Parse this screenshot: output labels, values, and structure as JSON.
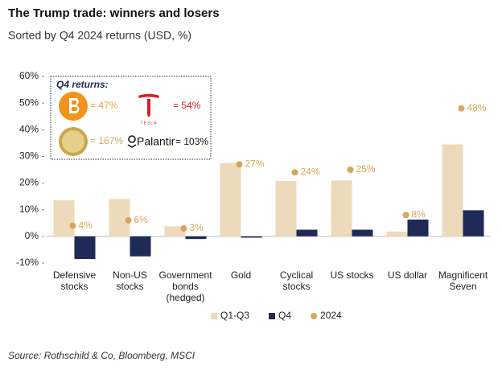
{
  "chart_data": {
    "type": "bar",
    "title": "The Trump trade: winners and losers",
    "subtitle": "Sorted by Q4 2024 returns (USD, %)",
    "source": "Source: Rothschild & Co, Bloomberg, MSCI",
    "categories": [
      "Defensive\nstocks",
      "Non-US\nstocks",
      "Government\nbonds\n(hedged)",
      "Gold",
      "Cyclical\nstocks",
      "US stocks",
      "US dollar",
      "Magnificent\nSeven"
    ],
    "series": [
      {
        "name": "Q1-Q3",
        "color": "#ecdabb",
        "values": [
          13.5,
          14,
          3.8,
          27.5,
          20.8,
          21,
          1.8,
          34.5
        ]
      },
      {
        "name": "Q4",
        "color": "#1f2a56",
        "values": [
          -8.5,
          -7.5,
          -1,
          -0.5,
          2.5,
          2.5,
          6.3,
          9.8
        ]
      },
      {
        "name": "2024",
        "color": "#d9a55a",
        "marker": "dot",
        "values": [
          4,
          6,
          3,
          27,
          24,
          25,
          8,
          48
        ],
        "value_labels": [
          "4%",
          "6%",
          "3%",
          "27%",
          "24%",
          "25%",
          "8%",
          "48%"
        ]
      }
    ],
    "ylim": [
      -10,
      60
    ],
    "yticks": [
      {
        "value": -10,
        "label": "-10%"
      },
      {
        "value": 0,
        "label": "0%"
      },
      {
        "value": 10,
        "label": "10%"
      },
      {
        "value": 20,
        "label": "20%"
      },
      {
        "value": 30,
        "label": "30%"
      },
      {
        "value": 40,
        "label": "40%"
      },
      {
        "value": 50,
        "label": "50%"
      },
      {
        "value": 60,
        "label": "60%"
      }
    ],
    "inset": {
      "title": "Q4 returns:",
      "items": [
        {
          "text": "= 47%"
        },
        {
          "brand": "TESLA",
          "text": "= 54%"
        },
        {
          "text": "= 167%"
        },
        {
          "brand": "Palantir",
          "text": "= 103%"
        }
      ]
    }
  }
}
